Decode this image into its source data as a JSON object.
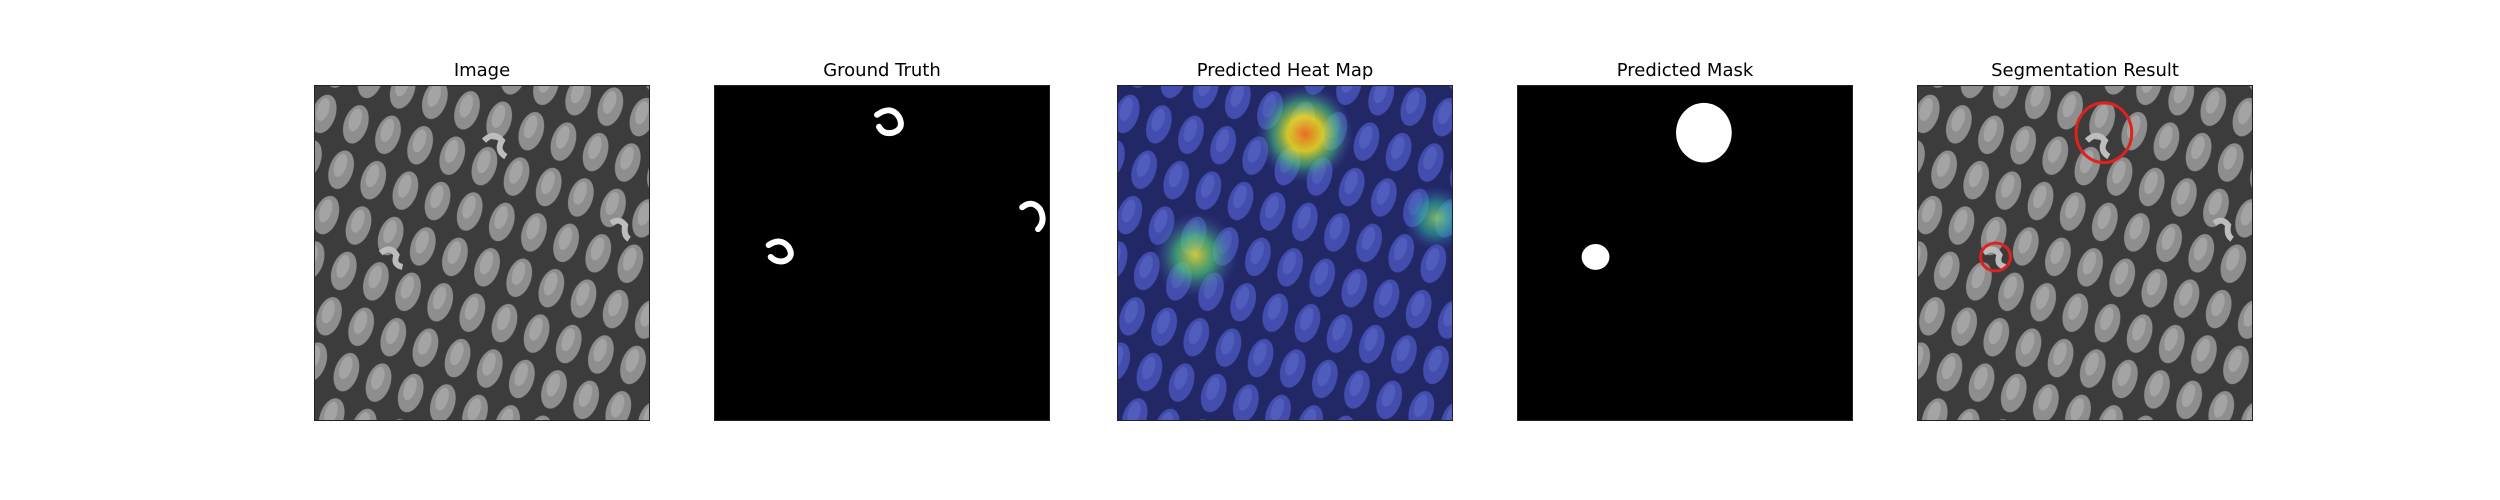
{
  "figure": {
    "panels": [
      {
        "id": "image",
        "title": "Image"
      },
      {
        "id": "ground_truth",
        "title": "Ground Truth"
      },
      {
        "id": "heat_map",
        "title": "Predicted Heat Map"
      },
      {
        "id": "mask",
        "title": "Predicted Mask"
      },
      {
        "id": "segmentation",
        "title": "Segmentation Result"
      }
    ]
  },
  "colors": {
    "background": "#ffffff",
    "texture_dark": "#3c3c3c",
    "texture_light": "#8e8e8e",
    "mask_white": "#ffffff",
    "mask_black": "#000000",
    "contour_red": "#e0211d",
    "heat_low": "#3a3ab0",
    "heat_high": "#f2e21e"
  }
}
